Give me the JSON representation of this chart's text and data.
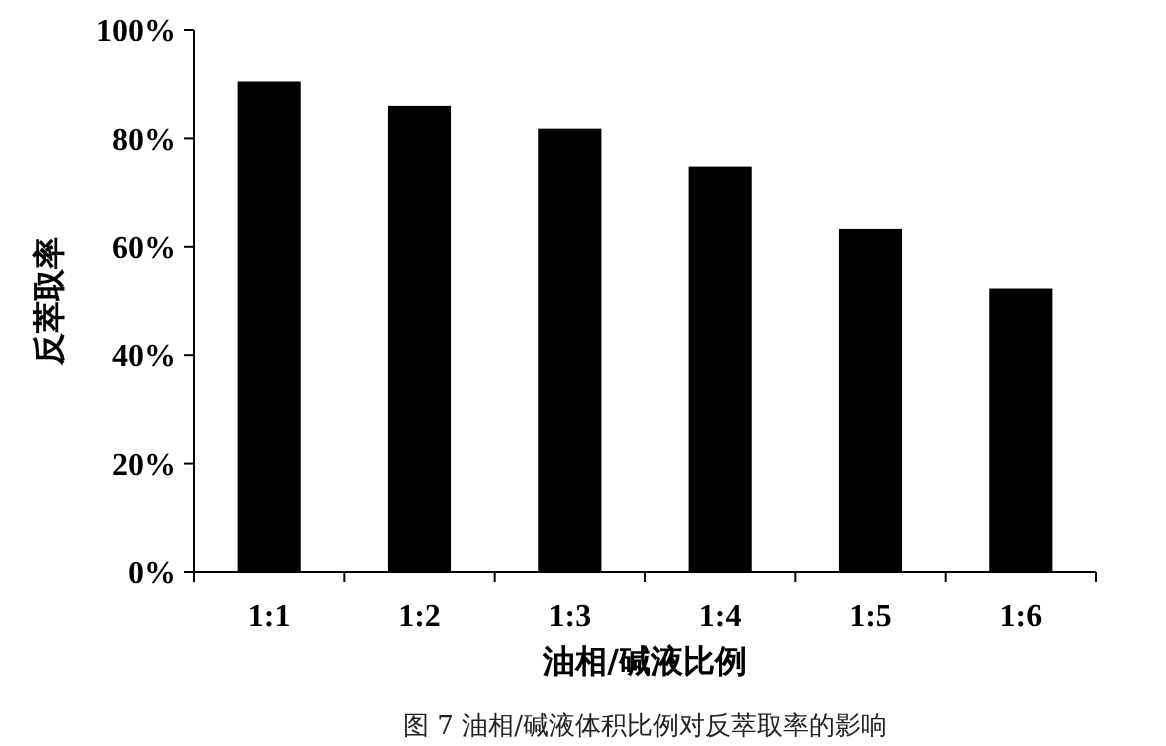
{
  "chart_data": {
    "type": "bar",
    "xlabel": "油相/碱液比例",
    "ylabel": "反萃取率",
    "categories": [
      "1:1",
      "1:2",
      "1:3",
      "1:4",
      "1:5",
      "1:6"
    ],
    "values": [
      90.5,
      86,
      81.8,
      74.8,
      63.3,
      52.3
    ],
    "color": "#000000",
    "ylim": [
      0,
      100
    ],
    "yticks": [
      {
        "value": 0,
        "label": "0%"
      },
      {
        "value": 20,
        "label": "20%"
      },
      {
        "value": 40,
        "label": "40%"
      },
      {
        "value": 60,
        "label": "60%"
      },
      {
        "value": 80,
        "label": "80%"
      },
      {
        "value": 100,
        "label": "100%"
      }
    ],
    "grid": false,
    "annotations": [
      "图 7  油相/碱液体积比例对反萃取率的影响"
    ]
  }
}
